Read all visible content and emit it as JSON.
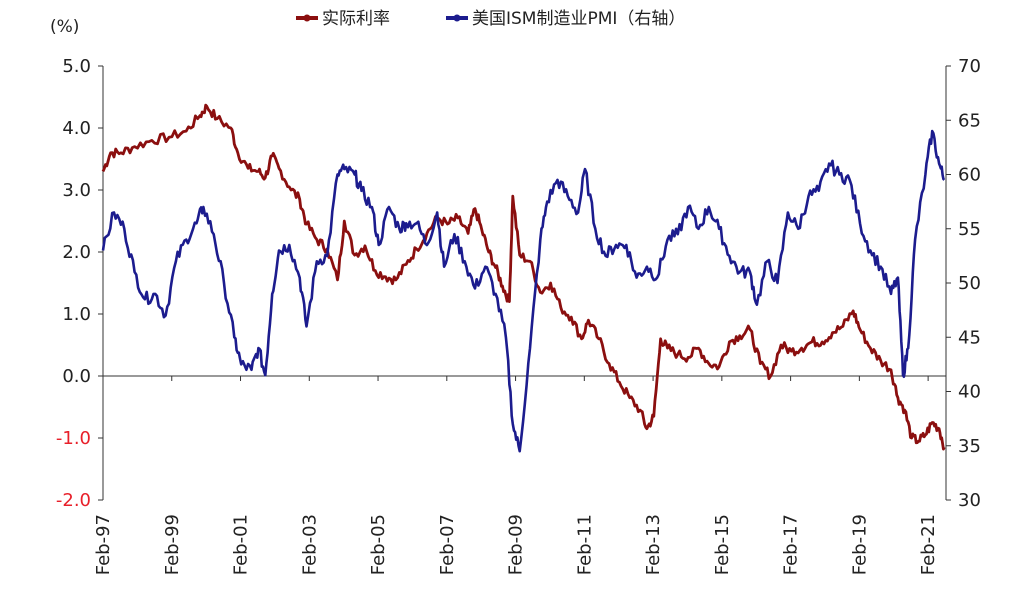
{
  "chart_data": {
    "type": "line",
    "title": "",
    "unit_label": "(%)",
    "legend_position": "top-center",
    "grid": false,
    "x_tick_labels": [
      "Feb-97",
      "Feb-99",
      "Feb-01",
      "Feb-03",
      "Feb-05",
      "Feb-07",
      "Feb-09",
      "Feb-11",
      "Feb-13",
      "Feb-15",
      "Feb-17",
      "Feb-19",
      "Feb-21"
    ],
    "x_ticks_year": [
      1997.08,
      1999.08,
      2001.08,
      2003.08,
      2005.08,
      2007.08,
      2009.08,
      2011.08,
      2013.08,
      2015.08,
      2017.08,
      2019.08,
      2021.08
    ],
    "xlim": [
      1997.08,
      2021.6
    ],
    "y_left": {
      "ylim": [
        -2.0,
        5.0
      ],
      "ticks": [
        "5.0",
        "4.0",
        "3.0",
        "2.0",
        "1.0",
        "0.0",
        "-1.0",
        "-2.0"
      ],
      "tick_values": [
        5,
        4,
        3,
        2,
        1,
        0,
        -1,
        -2
      ],
      "negative_color": "#e8202a"
    },
    "y_right": {
      "ylim": [
        30,
        70
      ],
      "ticks": [
        "70",
        "65",
        "60",
        "55",
        "50",
        "45",
        "40",
        "35",
        "30"
      ],
      "tick_values": [
        70,
        65,
        60,
        55,
        50,
        45,
        40,
        35,
        30
      ]
    },
    "series": [
      {
        "name": "实际利率",
        "axis": "left",
        "color": "#8b0f0f",
        "x": [
          1997.08,
          1997.3,
          1997.6,
          1998.0,
          1998.5,
          1999.0,
          1999.5,
          1999.9,
          2000.1,
          2000.4,
          2000.8,
          2001.0,
          2001.3,
          2001.6,
          2001.8,
          2002.0,
          2002.2,
          2002.5,
          2002.8,
          2003.0,
          2003.3,
          2003.6,
          2003.9,
          2004.1,
          2004.4,
          2004.7,
          2005.0,
          2005.3,
          2005.6,
          2005.9,
          2006.2,
          2006.5,
          2006.8,
          2007.1,
          2007.4,
          2007.7,
          2007.9,
          2008.1,
          2008.3,
          2008.5,
          2008.7,
          2008.9,
          2009.0,
          2009.2,
          2009.5,
          2009.8,
          2010.1,
          2010.4,
          2010.7,
          2011.0,
          2011.2,
          2011.5,
          2011.8,
          2012.1,
          2012.4,
          2012.7,
          2012.9,
          2013.1,
          2013.3,
          2013.5,
          2013.8,
          2014.1,
          2014.4,
          2014.7,
          2015.0,
          2015.3,
          2015.6,
          2015.9,
          2016.2,
          2016.5,
          2016.8,
          2017.1,
          2017.4,
          2017.7,
          2018.0,
          2018.3,
          2018.6,
          2018.9,
          2019.1,
          2019.4,
          2019.7,
          2020.0,
          2020.2,
          2020.4,
          2020.6,
          2020.8,
          2021.0,
          2021.2,
          2021.4,
          2021.55
        ],
        "values": [
          3.3,
          3.6,
          3.6,
          3.7,
          3.8,
          3.85,
          3.95,
          4.2,
          4.35,
          4.15,
          4.0,
          3.6,
          3.35,
          3.3,
          3.2,
          3.55,
          3.35,
          3.05,
          2.85,
          2.45,
          2.2,
          2.05,
          1.55,
          2.5,
          1.95,
          2.1,
          1.7,
          1.6,
          1.55,
          1.8,
          2.05,
          2.3,
          2.55,
          2.45,
          2.55,
          2.3,
          2.7,
          2.35,
          2.0,
          1.75,
          1.45,
          1.2,
          2.9,
          1.95,
          1.85,
          1.35,
          1.5,
          1.1,
          0.95,
          0.6,
          0.9,
          0.6,
          0.2,
          -0.1,
          -0.35,
          -0.55,
          -0.85,
          -0.65,
          0.6,
          0.45,
          0.35,
          0.3,
          0.45,
          0.2,
          0.15,
          0.55,
          0.65,
          0.75,
          0.2,
          0.0,
          0.5,
          0.4,
          0.45,
          0.55,
          0.55,
          0.7,
          0.8,
          1.05,
          0.75,
          0.45,
          0.25,
          0.1,
          -0.35,
          -0.55,
          -1.0,
          -1.05,
          -0.95,
          -0.75,
          -0.85,
          -1.15
        ]
      },
      {
        "name": "美国ISM制造业PMI（右轴）",
        "axis": "right",
        "color": "#1c1c8e",
        "x": [
          1997.08,
          1997.4,
          1997.7,
          1998.0,
          1998.3,
          1998.6,
          1998.9,
          1999.2,
          1999.5,
          1999.8,
          2000.0,
          2000.3,
          2000.6,
          2000.9,
          2001.1,
          2001.4,
          2001.6,
          2001.8,
          2002.0,
          2002.2,
          2002.5,
          2002.8,
          2003.0,
          2003.3,
          2003.6,
          2003.9,
          2004.1,
          2004.4,
          2004.6,
          2004.9,
          2005.1,
          2005.4,
          2005.7,
          2005.9,
          2006.2,
          2006.5,
          2006.8,
          2007.0,
          2007.3,
          2007.6,
          2007.9,
          2008.2,
          2008.5,
          2008.8,
          2009.0,
          2009.2,
          2009.5,
          2009.8,
          2010.0,
          2010.3,
          2010.6,
          2010.9,
          2011.1,
          2011.4,
          2011.7,
          2012.0,
          2012.3,
          2012.6,
          2012.9,
          2013.2,
          2013.5,
          2013.8,
          2014.1,
          2014.4,
          2014.7,
          2015.0,
          2015.3,
          2015.6,
          2015.9,
          2016.1,
          2016.4,
          2016.7,
          2017.0,
          2017.3,
          2017.6,
          2017.9,
          2018.2,
          2018.5,
          2018.8,
          2019.1,
          2019.4,
          2019.7,
          2020.0,
          2020.2,
          2020.35,
          2020.5,
          2020.7,
          2021.0,
          2021.2,
          2021.4,
          2021.55
        ],
        "values": [
          53,
          56.5,
          55,
          51,
          48.5,
          49,
          47,
          52,
          54,
          55.5,
          57,
          54.5,
          50,
          45,
          42.5,
          42,
          44,
          41.5,
          49,
          53,
          53.5,
          50.5,
          46,
          52,
          52.5,
          60,
          60.5,
          60,
          58.5,
          57,
          53.5,
          57,
          55,
          55.5,
          55.5,
          53.5,
          56.5,
          51.5,
          54.5,
          52,
          49.5,
          51.5,
          49,
          45,
          37,
          34.5,
          44,
          54,
          57.5,
          59.5,
          58,
          56.5,
          60.5,
          55,
          52.5,
          53.5,
          53.5,
          50.5,
          51.5,
          50.5,
          54,
          54.5,
          57,
          55,
          57,
          55,
          52.5,
          51,
          51,
          48,
          52,
          50,
          56.5,
          55,
          58,
          58.5,
          61,
          60,
          59.5,
          55.5,
          53,
          51.5,
          49,
          50.5,
          41.5,
          44,
          54,
          60,
          64,
          61,
          59.5
        ]
      }
    ]
  }
}
